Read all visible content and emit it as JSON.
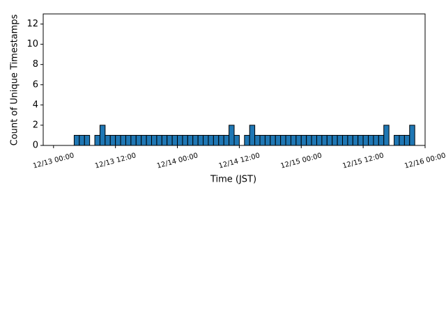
{
  "chart_data": {
    "type": "histogram",
    "xlabel": "Time (JST)",
    "ylabel": "Count of Unique Timestamps",
    "color": "#1f77b4",
    "edgecolor": "#000000",
    "bins": [
      0,
      1,
      2,
      3,
      4,
      5,
      6,
      7,
      8,
      9,
      10,
      11,
      12,
      13,
      14,
      15,
      16,
      17,
      18,
      19,
      20,
      21,
      22,
      23,
      24,
      25,
      26,
      27,
      28,
      29,
      30,
      31,
      32,
      33,
      34,
      35,
      36,
      37,
      38,
      39,
      40,
      41,
      42,
      43,
      44,
      45,
      46,
      47,
      48,
      49,
      50,
      51,
      52,
      53,
      54,
      55,
      56,
      57,
      58,
      59,
      60,
      61,
      62,
      63,
      64,
      65,
      66,
      67,
      68,
      69,
      70
    ],
    "values": [
      0,
      0,
      0,
      0,
      1,
      1,
      1,
      0,
      1,
      2,
      1,
      1,
      1,
      1,
      1,
      1,
      1,
      1,
      1,
      1,
      1,
      1,
      1,
      1,
      1,
      1,
      1,
      1,
      1,
      1,
      1,
      1,
      1,
      1,
      2,
      1,
      0,
      1,
      2,
      1,
      1,
      1,
      1,
      1,
      1,
      1,
      1,
      1,
      1,
      1,
      1,
      1,
      1,
      1,
      1,
      1,
      1,
      1,
      1,
      1,
      1,
      1,
      1,
      1,
      2,
      0,
      1,
      1,
      1,
      2
    ],
    "xlim": [
      -2,
      72
    ],
    "xticks": [
      {
        "value": 0,
        "label": "12/13 00:00"
      },
      {
        "value": 12,
        "label": "12/13 12:00"
      },
      {
        "value": 24,
        "label": "12/14 00:00"
      },
      {
        "value": 36,
        "label": "12/14 12:00"
      },
      {
        "value": 48,
        "label": "12/15 00:00"
      },
      {
        "value": 60,
        "label": "12/15 12:00"
      },
      {
        "value": 72,
        "label": "12/16 00:00"
      }
    ],
    "ylim": [
      0,
      13
    ],
    "yticks": [
      0,
      2,
      4,
      6,
      8,
      10,
      12
    ]
  }
}
